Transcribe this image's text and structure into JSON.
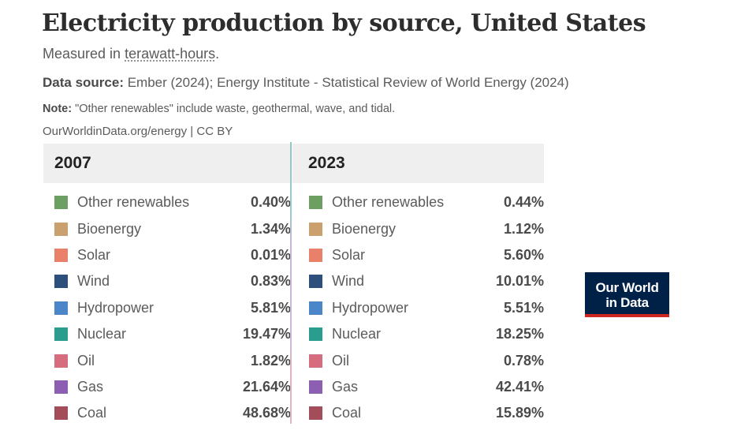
{
  "header": {
    "title": "Electricity production by source, United States",
    "subtitle_prefix": "Measured in ",
    "subtitle_unit": "terawatt-hours",
    "subtitle_suffix": ".",
    "source_label": "Data source:",
    "source_text": " Ember (2024); Energy Institute - Statistical Review of World Energy (2024)",
    "note_label": "Note:",
    "note_text": " \"Other renewables\" include waste, geothermal, wave, and tidal.",
    "credit": "OurWorldinData.org/energy | CC BY"
  },
  "logo": {
    "line1": "Our World",
    "line2": "in Data",
    "bg_color": "#002147",
    "accent_color": "#ce261e"
  },
  "chart_data": {
    "type": "table",
    "title": "Electricity production by source, United States",
    "subtitle": "Measured in terawatt-hours.",
    "unit": "% share",
    "columns": [
      "2007",
      "2023"
    ],
    "categories": [
      "Other renewables",
      "Bioenergy",
      "Solar",
      "Wind",
      "Hydropower",
      "Nuclear",
      "Oil",
      "Gas",
      "Coal"
    ],
    "colors": [
      "#6e9f62",
      "#c9a06e",
      "#e8806a",
      "#2c4f7c",
      "#4a86c8",
      "#2a9d8f",
      "#d66d7f",
      "#8d5fb3",
      "#a34c5a"
    ],
    "series": [
      {
        "name": "2007",
        "values": [
          0.4,
          1.34,
          0.01,
          0.83,
          5.81,
          19.47,
          1.82,
          21.64,
          48.68
        ],
        "labels": [
          "0.40%",
          "1.34%",
          "0.01%",
          "0.83%",
          "5.81%",
          "19.47%",
          "1.82%",
          "21.64%",
          "48.68%"
        ]
      },
      {
        "name": "2023",
        "values": [
          0.44,
          1.12,
          5.6,
          10.01,
          5.51,
          18.25,
          0.78,
          42.41,
          15.89
        ],
        "labels": [
          "0.44%",
          "1.12%",
          "5.60%",
          "10.01%",
          "5.51%",
          "18.25%",
          "0.78%",
          "42.41%",
          "15.89%"
        ]
      }
    ]
  }
}
